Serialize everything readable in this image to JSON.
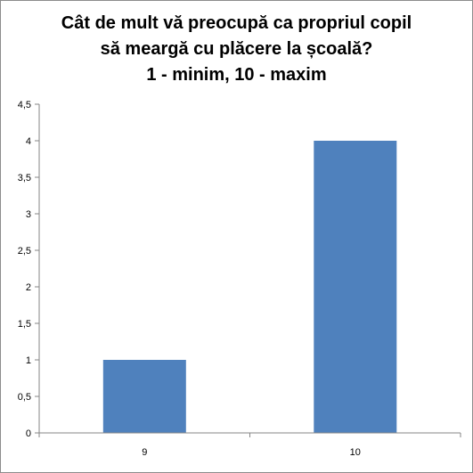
{
  "chart_data": {
    "type": "bar",
    "title_lines": [
      "Cât de mult vă preocupă ca propriul copil",
      "să meargă cu plăcere la școală?",
      "1 - minim, 10 - maxim"
    ],
    "categories": [
      "9",
      "10"
    ],
    "values": [
      1,
      4
    ],
    "xlabel": "",
    "ylabel": "",
    "ylim": [
      0,
      4.5
    ],
    "y_ticks": [
      "0",
      "0,5",
      "1",
      "1,5",
      "2",
      "2,5",
      "3",
      "3,5",
      "4",
      "4,5"
    ],
    "grid": false,
    "legend": "none",
    "bar_color": "#4f81bd",
    "axis_color": "#868686"
  }
}
